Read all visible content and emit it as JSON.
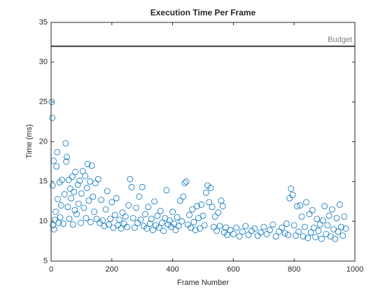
{
  "chart_data": {
    "type": "scatter",
    "title": "Execution Time Per Frame",
    "xlabel": "Frame Number",
    "ylabel": "Time (ms)",
    "color": "#0072bd",
    "xlim": [
      0,
      1000
    ],
    "xticks": [
      0,
      200,
      400,
      600,
      800,
      1000
    ],
    "ylim": [
      5,
      35
    ],
    "yticks": [
      5,
      10,
      15,
      20,
      25,
      30,
      35
    ],
    "reference_line": {
      "value": 32,
      "label": "Budget",
      "color": "#404040",
      "label_color": "#808080"
    },
    "x": [
      2,
      4,
      5,
      6,
      8,
      10,
      12,
      15,
      18,
      20,
      22,
      25,
      28,
      30,
      33,
      36,
      40,
      44,
      48,
      50,
      52,
      55,
      58,
      60,
      63,
      66,
      70,
      72,
      75,
      78,
      80,
      84,
      88,
      90,
      94,
      98,
      100,
      104,
      108,
      112,
      115,
      118,
      120,
      124,
      128,
      130,
      134,
      138,
      142,
      146,
      150,
      155,
      160,
      165,
      170,
      175,
      180,
      185,
      190,
      195,
      200,
      205,
      210,
      215,
      220,
      225,
      230,
      235,
      240,
      245,
      250,
      255,
      260,
      265,
      270,
      275,
      280,
      285,
      290,
      295,
      300,
      305,
      310,
      315,
      320,
      325,
      330,
      335,
      340,
      345,
      350,
      355,
      360,
      365,
      370,
      375,
      380,
      385,
      390,
      395,
      400,
      405,
      410,
      415,
      420,
      425,
      430,
      435,
      440,
      445,
      450,
      455,
      460,
      465,
      470,
      475,
      480,
      485,
      490,
      495,
      500,
      505,
      510,
      515,
      520,
      525,
      530,
      535,
      540,
      545,
      550,
      555,
      560,
      565,
      570,
      575,
      580,
      590,
      600,
      610,
      620,
      630,
      640,
      650,
      660,
      670,
      680,
      690,
      700,
      710,
      720,
      730,
      740,
      750,
      760,
      770,
      775,
      780,
      785,
      790,
      795,
      800,
      805,
      810,
      815,
      820,
      825,
      830,
      835,
      840,
      845,
      850,
      855,
      860,
      865,
      870,
      875,
      880,
      885,
      890,
      895,
      900,
      905,
      910,
      915,
      920,
      925,
      930,
      935,
      940,
      945,
      950,
      955,
      960,
      965,
      970
    ],
    "values": [
      25,
      23,
      14.5,
      9.5,
      17.6,
      9,
      10.2,
      11.2,
      16.9,
      18.7,
      12.8,
      9.8,
      14.9,
      10.5,
      12,
      15.2,
      9.7,
      13.4,
      19.8,
      17.5,
      18.1,
      11.8,
      15.2,
      10.3,
      14.1,
      12.9,
      15.6,
      9.6,
      13.7,
      11.4,
      16.2,
      10.9,
      14.6,
      12.2,
      15.1,
      9.8,
      13.5,
      16.3,
      11.7,
      15.7,
      10.4,
      14.2,
      17.2,
      12.6,
      15,
      9.9,
      17,
      13.1,
      11.2,
      14.8,
      10.3,
      15.3,
      9.8,
      12.7,
      10.1,
      9.4,
      11.5,
      13.8,
      9.6,
      10.3,
      12.4,
      9.2,
      10.8,
      12.9,
      9.5,
      10.2,
      9.1,
      11.1,
      9.7,
      10.6,
      9.3,
      12,
      15.3,
      14.3,
      10.4,
      9.2,
      11.7,
      9.8,
      13.1,
      10.2,
      14.3,
      9.4,
      10.9,
      9.1,
      11.8,
      9.7,
      10.3,
      8.9,
      12.5,
      9.5,
      10.7,
      9.2,
      11.3,
      9.8,
      8.8,
      10.4,
      13.9,
      9.6,
      10.1,
      9.3,
      11.2,
      9.7,
      8.9,
      10.5,
      9.4,
      12.6,
      10,
      13.1,
      14.8,
      15,
      9.6,
      10.8,
      9.2,
      11.5,
      9.9,
      8.9,
      11.9,
      10.4,
      9.1,
      12.1,
      10.7,
      9.5,
      13.6,
      14.5,
      12.4,
      14.2,
      11.8,
      9.3,
      10.6,
      8.8,
      11.1,
      9.4,
      12.6,
      11.9,
      8.6,
      9.2,
      8.3,
      8.9,
      8.4,
      9.2,
      8.1,
      8.7,
      9.4,
      8.3,
      8.8,
      9.1,
      8.2,
      8.6,
      9.3,
      8.4,
      8.9,
      9.6,
      8.1,
      8.7,
      9.2,
      8.5,
      9.7,
      8.3,
      12.9,
      14.1,
      13.3,
      9.5,
      8.2,
      11.9,
      8.7,
      12,
      10.6,
      8.1,
      9.3,
      12.4,
      7.9,
      10.9,
      8.6,
      11.4,
      9.2,
      8,
      10.3,
      8.8,
      9.6,
      7.8,
      10.1,
      11.9,
      8.4,
      9.5,
      10.7,
      8.1,
      11.5,
      9,
      7.8,
      10.4,
      8.7,
      12.1,
      9.3,
      8.2,
      10.6,
      9.1
    ]
  }
}
